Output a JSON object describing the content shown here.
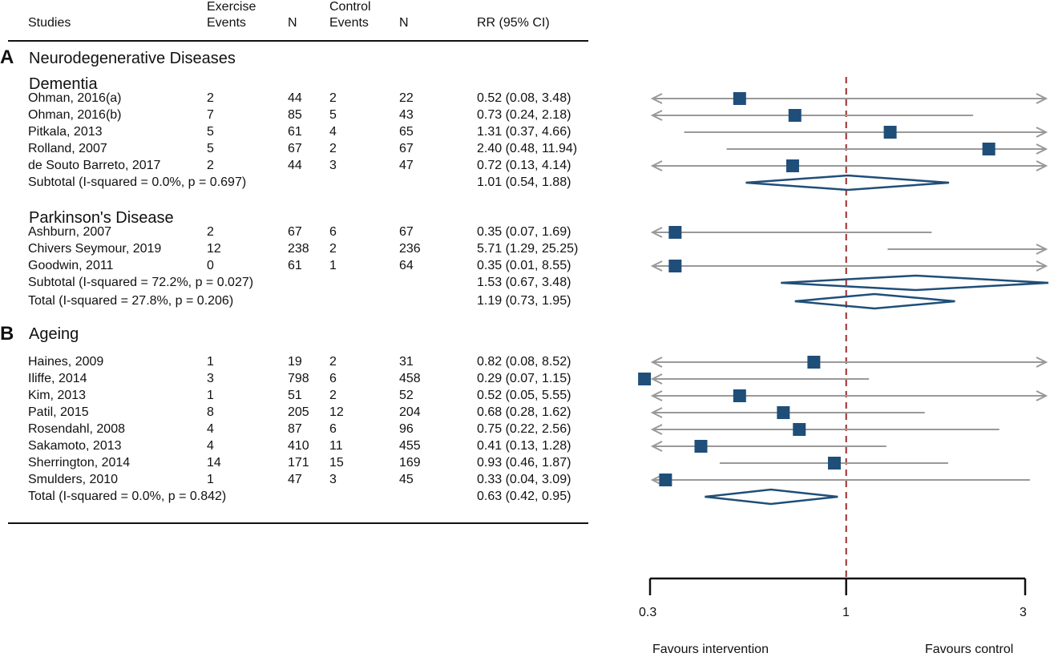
{
  "header": {
    "studies": "Studies",
    "exercise_events": [
      "Exercise",
      "Events"
    ],
    "exercise_n": "N",
    "control_events": [
      "Control",
      "Events"
    ],
    "control_n": "N",
    "rr": "RR (95% CI)"
  },
  "sections": {
    "a_letter": "A",
    "a_title": "Neurodegenerative Diseases",
    "dementia_title": "Dementia",
    "parkinson_title": "Parkinson's Disease",
    "b_letter": "B",
    "b_title": "Ageing"
  },
  "rows": {
    "dementia": [
      {
        "study": "Ohman, 2016(a)",
        "ex_events": "2",
        "ex_n": "44",
        "ct_events": "2",
        "ct_n": "22",
        "rr_text": "0.52 (0.08, 3.48)"
      },
      {
        "study": "Ohman, 2016(b)",
        "ex_events": "7",
        "ex_n": "85",
        "ct_events": "5",
        "ct_n": "43",
        "rr_text": "0.73 (0.24, 2.18)"
      },
      {
        "study": "Pitkala, 2013",
        "ex_events": "5",
        "ex_n": "61",
        "ct_events": "4",
        "ct_n": "65",
        "rr_text": "1.31 (0.37, 4.66)"
      },
      {
        "study": "Rolland, 2007",
        "ex_events": "5",
        "ex_n": "67",
        "ct_events": "2",
        "ct_n": "67",
        "rr_text": "2.40 (0.48, 11.94)"
      },
      {
        "study": "de Souto Barreto, 2017",
        "ex_events": "2",
        "ex_n": "44",
        "ct_events": "3",
        "ct_n": "47",
        "rr_text": "0.72 (0.13, 4.14)"
      }
    ],
    "dementia_subtotal": {
      "label": "Subtotal  (I-squared = 0.0%, p = 0.697)",
      "rr_text": "1.01 (0.54, 1.88)"
    },
    "parkinson": [
      {
        "study": "Ashburn, 2007",
        "ex_events": "2",
        "ex_n": "67",
        "ct_events": "6",
        "ct_n": "67",
        "rr_text": "0.35 (0.07, 1.69)"
      },
      {
        "study": "Chivers Seymour, 2019",
        "ex_events": "12",
        "ex_n": "238",
        "ct_events": "2",
        "ct_n": "236",
        "rr_text": "5.71 (1.29, 25.25)"
      },
      {
        "study": "Goodwin, 2011",
        "ex_events": "0",
        "ex_n": "61",
        "ct_events": "1",
        "ct_n": "64",
        "rr_text": "0.35 (0.01, 8.55)"
      }
    ],
    "parkinson_subtotal": {
      "label": "Subtotal  (I-squared = 72.2%, p = 0.027)",
      "rr_text": "1.53 (0.67, 3.48)"
    },
    "a_total": {
      "label": "Total  (I-squared = 27.8%, p = 0.206)",
      "rr_text": "1.19 (0.73, 1.95)"
    },
    "ageing": [
      {
        "study": "Haines, 2009",
        "ex_events": "1",
        "ex_n": "19",
        "ct_events": "2",
        "ct_n": "31",
        "rr_text": "0.82 (0.08, 8.52)"
      },
      {
        "study": "Iliffe, 2014",
        "ex_events": "3",
        "ex_n": "798",
        "ct_events": "6",
        "ct_n": "458",
        "rr_text": "0.29 (0.07, 1.15)"
      },
      {
        "study": "Kim, 2013",
        "ex_events": "1",
        "ex_n": "51",
        "ct_events": "2",
        "ct_n": "52",
        "rr_text": "0.52 (0.05, 5.55)"
      },
      {
        "study": "Patil, 2015",
        "ex_events": "8",
        "ex_n": "205",
        "ct_events": "12",
        "ct_n": "204",
        "rr_text": "0.68 (0.28, 1.62)"
      },
      {
        "study": "Rosendahl, 2008",
        "ex_events": "4",
        "ex_n": "87",
        "ct_events": "6",
        "ct_n": "96",
        "rr_text": "0.75 (0.22, 2.56)"
      },
      {
        "study": "Sakamoto, 2013",
        "ex_events": "4",
        "ex_n": "410",
        "ct_events": "11",
        "ct_n": "455",
        "rr_text": "0.41 (0.13, 1.28)"
      },
      {
        "study": "Sherrington, 2014",
        "ex_events": "14",
        "ex_n": "171",
        "ct_events": "15",
        "ct_n": "169",
        "rr_text": "0.93 (0.46, 1.87)"
      },
      {
        "study": "Smulders, 2010",
        "ex_events": "1",
        "ex_n": "47",
        "ct_events": "3",
        "ct_n": "45",
        "rr_text": "0.33 (0.04, 3.09)"
      }
    ],
    "b_total": {
      "label": "Total  (I-squared = 0.0%, p = 0.842)",
      "rr_text": "0.63 (0.42, 0.95)"
    }
  },
  "chart_data": {
    "type": "forest",
    "scale": "log",
    "xlim": [
      0.3,
      3
    ],
    "ticks": [
      0.3,
      1,
      3
    ],
    "tick_labels": [
      "0.3",
      "1",
      "3"
    ],
    "reference_line": 1,
    "favours_left": "Favours intervention",
    "favours_right": "Favours control",
    "colors": {
      "marker": "#1f4e79",
      "ci": "#999999",
      "reference": "#9e2a2b",
      "axis": "#111111"
    },
    "series": [
      {
        "group": "dementia",
        "kind": "study",
        "rr": 0.52,
        "lo": 0.08,
        "hi": 3.48
      },
      {
        "group": "dementia",
        "kind": "study",
        "rr": 0.73,
        "lo": 0.24,
        "hi": 2.18
      },
      {
        "group": "dementia",
        "kind": "study",
        "rr": 1.31,
        "lo": 0.37,
        "hi": 4.66
      },
      {
        "group": "dementia",
        "kind": "study",
        "rr": 2.4,
        "lo": 0.48,
        "hi": 11.94
      },
      {
        "group": "dementia",
        "kind": "study",
        "rr": 0.72,
        "lo": 0.13,
        "hi": 4.14
      },
      {
        "group": "dementia",
        "kind": "pooled",
        "rr": 1.01,
        "lo": 0.54,
        "hi": 1.88
      },
      {
        "group": "parkinson",
        "kind": "study",
        "rr": 0.35,
        "lo": 0.07,
        "hi": 1.69
      },
      {
        "group": "parkinson",
        "kind": "study",
        "rr": 5.71,
        "lo": 1.29,
        "hi": 25.25
      },
      {
        "group": "parkinson",
        "kind": "study",
        "rr": 0.35,
        "lo": 0.01,
        "hi": 8.55
      },
      {
        "group": "parkinson",
        "kind": "pooled",
        "rr": 1.53,
        "lo": 0.67,
        "hi": 3.48
      },
      {
        "group": "a_total",
        "kind": "pooled",
        "rr": 1.19,
        "lo": 0.73,
        "hi": 1.95
      },
      {
        "group": "ageing",
        "kind": "study",
        "rr": 0.82,
        "lo": 0.08,
        "hi": 8.52
      },
      {
        "group": "ageing",
        "kind": "study",
        "rr": 0.29,
        "lo": 0.07,
        "hi": 1.15
      },
      {
        "group": "ageing",
        "kind": "study",
        "rr": 0.52,
        "lo": 0.05,
        "hi": 5.55
      },
      {
        "group": "ageing",
        "kind": "study",
        "rr": 0.68,
        "lo": 0.28,
        "hi": 1.62
      },
      {
        "group": "ageing",
        "kind": "study",
        "rr": 0.75,
        "lo": 0.22,
        "hi": 2.56
      },
      {
        "group": "ageing",
        "kind": "study",
        "rr": 0.41,
        "lo": 0.13,
        "hi": 1.28
      },
      {
        "group": "ageing",
        "kind": "study",
        "rr": 0.93,
        "lo": 0.46,
        "hi": 1.87
      },
      {
        "group": "ageing",
        "kind": "study",
        "rr": 0.33,
        "lo": 0.04,
        "hi": 3.09
      },
      {
        "group": "b_total",
        "kind": "pooled",
        "rr": 0.63,
        "lo": 0.42,
        "hi": 0.95
      }
    ]
  }
}
